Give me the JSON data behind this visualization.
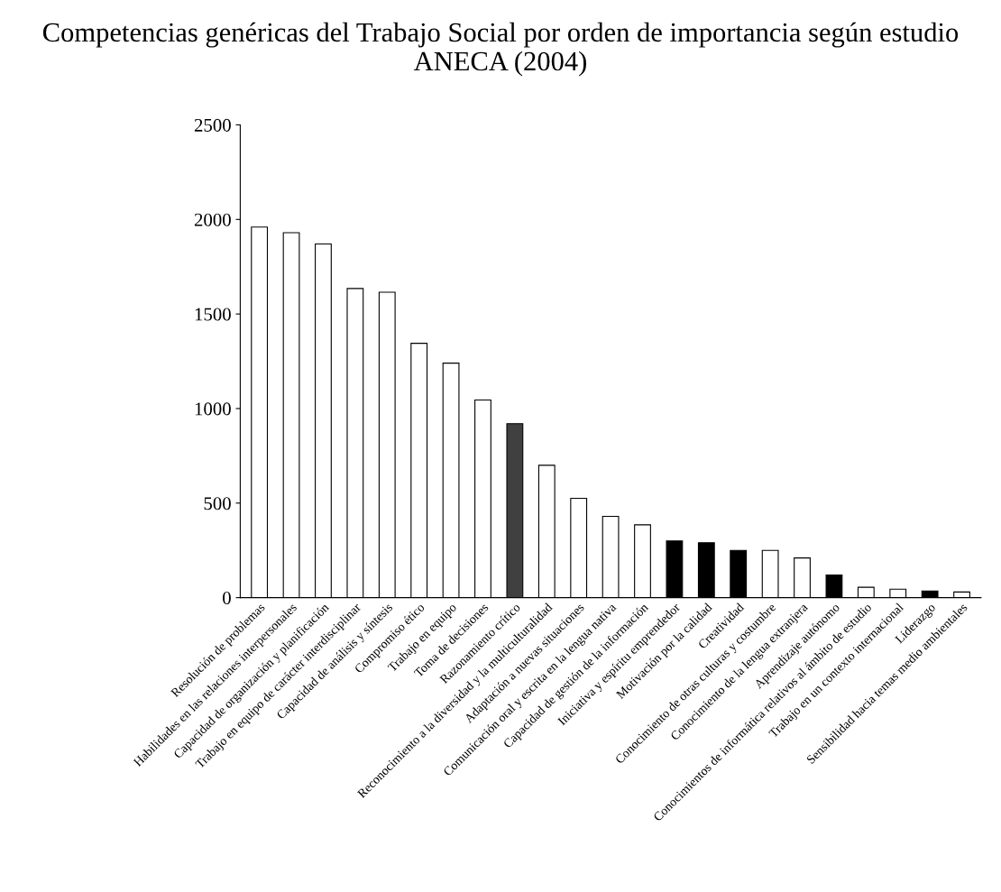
{
  "chart_data": {
    "type": "bar",
    "title": "Competencias genéricas del Trabajo Social por orden de importancia según estudio ANECA (2004)",
    "categories": [
      "Resolución de problemas",
      "Habilidades en las relaciones interpersonales",
      "Capacidad de organización y planificación",
      "Trabajo en equipo de carácter interdisciplinar",
      "Capacidad de análisis y síntesis",
      "Compromiso ético",
      "Trabajo en equipo",
      "Toma de decisiones",
      "Razonamiento crítico",
      "Reconocimiento a la diversidad y la multiculturalidad",
      "Adaptación a nuevas situaciones",
      "Comunicación oral y escrita en la lengua nativa",
      "Capacidad de gestión de la información",
      "Iniciativa y espíritu emprendedor",
      "Motivación por la calidad",
      "Creatividad",
      "Conocimiento de otras culturas y costumbre",
      "Conocimiento de la lengua extranjera",
      "Aprendizaje autónomo",
      "Conocimientos de informática relativos al ámbito de estudio",
      "Trabajo en un contexto internacional",
      "Liderazgo",
      "Sensibilidad hacia temas medio ambientales"
    ],
    "values": [
      1960,
      1930,
      1870,
      1635,
      1615,
      1345,
      1240,
      1045,
      920,
      700,
      525,
      430,
      385,
      300,
      290,
      250,
      250,
      210,
      120,
      55,
      45,
      35,
      30
    ],
    "colors": [
      "#ffffff",
      "#ffffff",
      "#ffffff",
      "#ffffff",
      "#ffffff",
      "#ffffff",
      "#ffffff",
      "#ffffff",
      "#404040",
      "#ffffff",
      "#ffffff",
      "#ffffff",
      "#ffffff",
      "#000000",
      "#000000",
      "#000000",
      "#ffffff",
      "#ffffff",
      "#000000",
      "#ffffff",
      "#ffffff",
      "#000000",
      "#ffffff"
    ],
    "ylim": [
      0,
      2500
    ],
    "yticks": [
      0,
      500,
      1000,
      1500,
      2000,
      2500
    ],
    "grid": false,
    "legend": false
  }
}
